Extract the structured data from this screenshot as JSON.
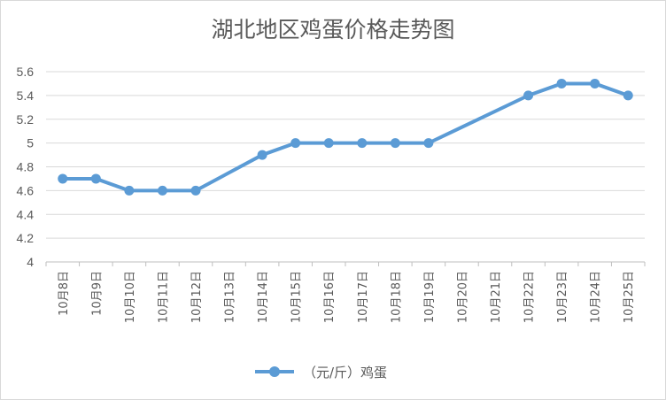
{
  "chart_data": {
    "type": "line",
    "title": "湖北地区鸡蛋价格走势图",
    "xlabel": "",
    "ylabel": "",
    "categories": [
      "10月8日",
      "10月9日",
      "10月10日",
      "10月11日",
      "10月12日",
      "10月13日",
      "10月14日",
      "10月15日",
      "10月16日",
      "10月17日",
      "10月18日",
      "10月19日",
      "10月20日",
      "10月21日",
      "10月22日",
      "10月23日",
      "10月24日",
      "10月25日"
    ],
    "series": [
      {
        "name": "（元/斤）鸡蛋",
        "values": [
          4.7,
          4.7,
          4.6,
          4.6,
          4.6,
          null,
          4.9,
          5.0,
          5.0,
          5.0,
          5.0,
          5.0,
          null,
          null,
          5.4,
          5.5,
          5.5,
          5.4
        ]
      }
    ],
    "ylim": [
      4,
      5.6
    ],
    "yticks": [
      "4",
      "4.2",
      "4.4",
      "4.6",
      "4.8",
      "5",
      "5.2",
      "5.4",
      "5.6"
    ],
    "grid": "horizontal",
    "legend_position": "bottom",
    "connect_gaps": true,
    "line_color": "#5b9bd5"
  }
}
